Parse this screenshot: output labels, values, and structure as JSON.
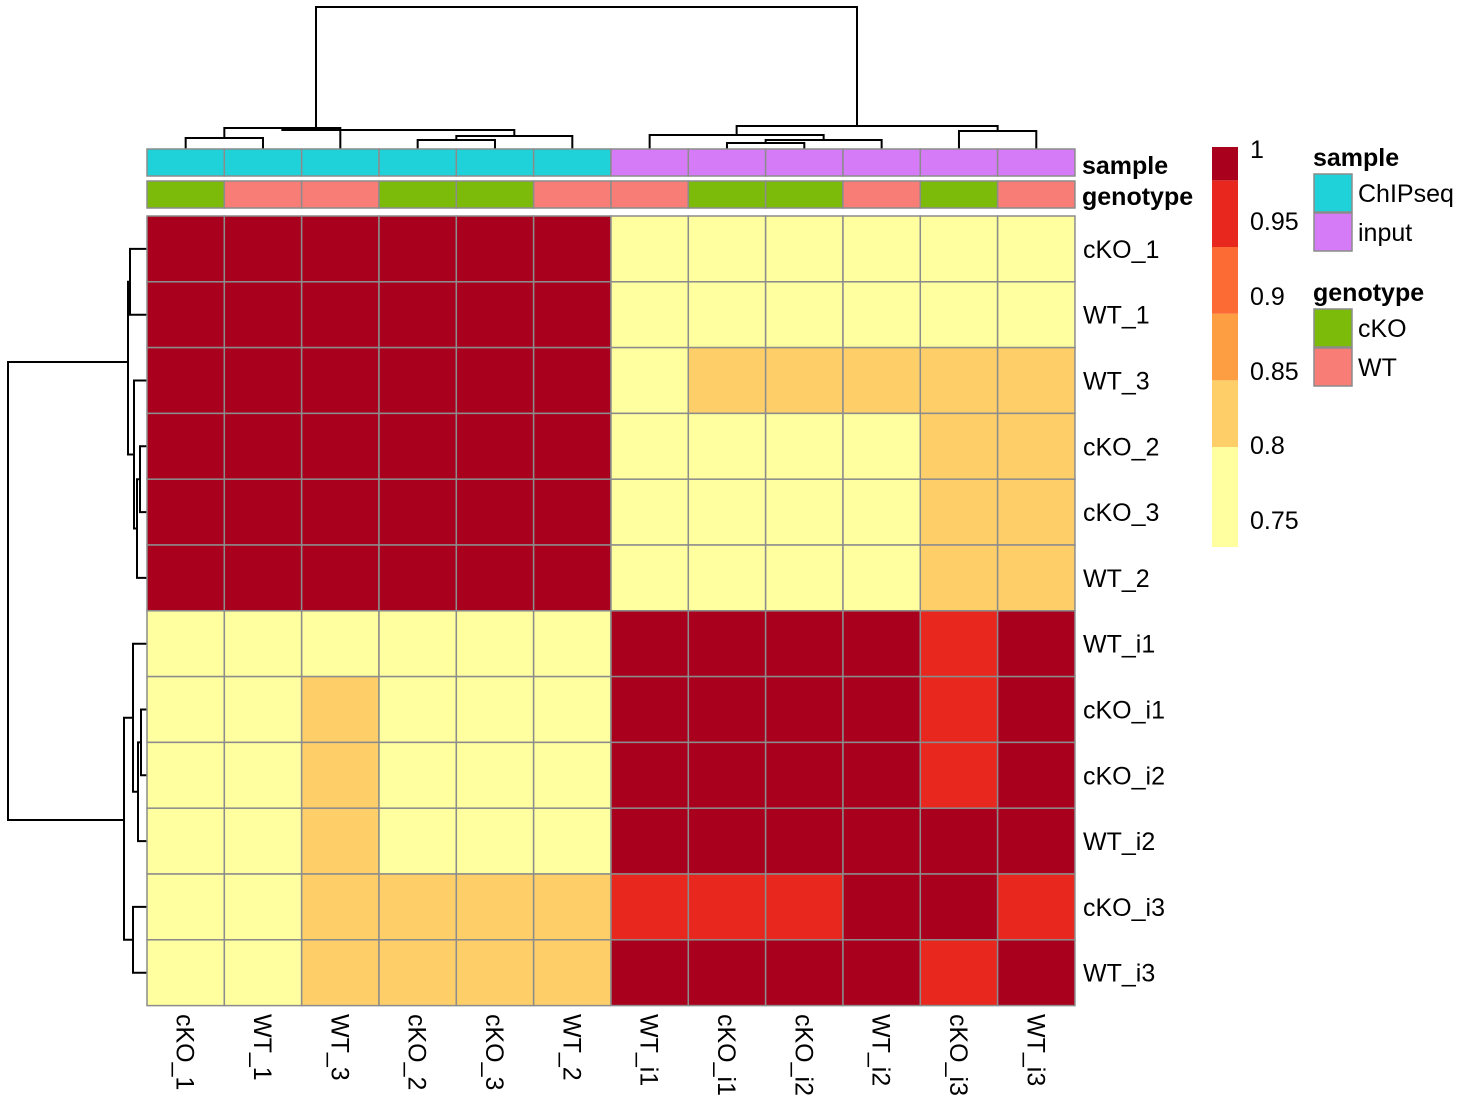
{
  "chart_data": {
    "type": "heatmap",
    "rows": [
      "cKO_1",
      "WT_1",
      "WT_3",
      "cKO_2",
      "cKO_3",
      "WT_2",
      "WT_i1",
      "cKO_i1",
      "cKO_i2",
      "WT_i2",
      "cKO_i3",
      "WT_i3"
    ],
    "cols": [
      "cKO_1",
      "WT_1",
      "WT_3",
      "cKO_2",
      "cKO_3",
      "WT_2",
      "WT_i1",
      "cKO_i1",
      "cKO_i2",
      "WT_i2",
      "cKO_i3",
      "WT_i3"
    ],
    "values": [
      [
        1.0,
        1.0,
        1.0,
        1.0,
        1.0,
        1.0,
        0.74,
        0.74,
        0.74,
        0.74,
        0.74,
        0.74
      ],
      [
        1.0,
        1.0,
        1.0,
        1.0,
        1.0,
        1.0,
        0.74,
        0.74,
        0.74,
        0.74,
        0.74,
        0.74
      ],
      [
        1.0,
        1.0,
        1.0,
        1.0,
        1.0,
        1.0,
        0.74,
        0.78,
        0.78,
        0.78,
        0.78,
        0.78
      ],
      [
        1.0,
        1.0,
        1.0,
        1.0,
        1.0,
        1.0,
        0.74,
        0.74,
        0.74,
        0.74,
        0.78,
        0.78
      ],
      [
        1.0,
        1.0,
        1.0,
        1.0,
        1.0,
        1.0,
        0.74,
        0.74,
        0.74,
        0.74,
        0.78,
        0.78
      ],
      [
        1.0,
        1.0,
        1.0,
        1.0,
        1.0,
        1.0,
        0.74,
        0.74,
        0.74,
        0.74,
        0.78,
        0.78
      ],
      [
        0.74,
        0.74,
        0.74,
        0.74,
        0.74,
        0.74,
        1.0,
        1.0,
        1.0,
        1.0,
        0.94,
        1.0
      ],
      [
        0.74,
        0.74,
        0.78,
        0.74,
        0.74,
        0.74,
        1.0,
        1.0,
        1.0,
        1.0,
        0.94,
        1.0
      ],
      [
        0.74,
        0.74,
        0.78,
        0.74,
        0.74,
        0.74,
        1.0,
        1.0,
        1.0,
        1.0,
        0.94,
        1.0
      ],
      [
        0.74,
        0.74,
        0.78,
        0.74,
        0.74,
        0.74,
        1.0,
        1.0,
        1.0,
        1.0,
        1.0,
        1.0
      ],
      [
        0.74,
        0.74,
        0.78,
        0.78,
        0.78,
        0.78,
        0.94,
        0.94,
        0.94,
        1.0,
        1.0,
        0.94
      ],
      [
        0.74,
        0.74,
        0.78,
        0.78,
        0.78,
        0.78,
        1.0,
        1.0,
        1.0,
        1.0,
        0.94,
        1.0
      ]
    ],
    "annotations": {
      "sample": {
        "label": "sample",
        "values": [
          "ChIPseq",
          "ChIPseq",
          "ChIPseq",
          "ChIPseq",
          "ChIPseq",
          "ChIPseq",
          "input",
          "input",
          "input",
          "input",
          "input",
          "input"
        ]
      },
      "genotype": {
        "label": "genotype",
        "values": [
          "cKO",
          "WT",
          "WT",
          "cKO",
          "cKO",
          "WT",
          "WT",
          "cKO",
          "cKO",
          "WT",
          "cKO",
          "WT"
        ]
      }
    },
    "color_scale": {
      "bins": [
        {
          "min": 0.7,
          "max": 0.775,
          "color": "#FFFFA0"
        },
        {
          "min": 0.775,
          "max": 0.825,
          "color": "#FECF68"
        },
        {
          "min": 0.825,
          "max": 0.875,
          "color": "#FD9E43"
        },
        {
          "min": 0.875,
          "max": 0.925,
          "color": "#FC6B34"
        },
        {
          "min": 0.925,
          "max": 0.975,
          "color": "#E8281E"
        },
        {
          "min": 0.975,
          "max": 1.01,
          "color": "#A8001D"
        }
      ],
      "ticks": [
        "1",
        "0.95",
        "0.9",
        "0.85",
        "0.8",
        "0.75"
      ],
      "tick_values": [
        1.0,
        0.95,
        0.9,
        0.85,
        0.8,
        0.75
      ],
      "range": [
        0.7,
        1.0
      ]
    },
    "legends": [
      {
        "title": "sample",
        "items": [
          {
            "label": "ChIPseq",
            "color": "#1FD2D9"
          },
          {
            "label": "input",
            "color": "#D67BF8"
          }
        ]
      },
      {
        "title": "genotype",
        "items": [
          {
            "label": "cKO",
            "color": "#7DBB0A"
          },
          {
            "label": "WT",
            "color": "#F87D77"
          }
        ]
      }
    ],
    "grid": true,
    "legend_position": "right",
    "dendrograms": {
      "rows": true,
      "cols": true
    }
  }
}
